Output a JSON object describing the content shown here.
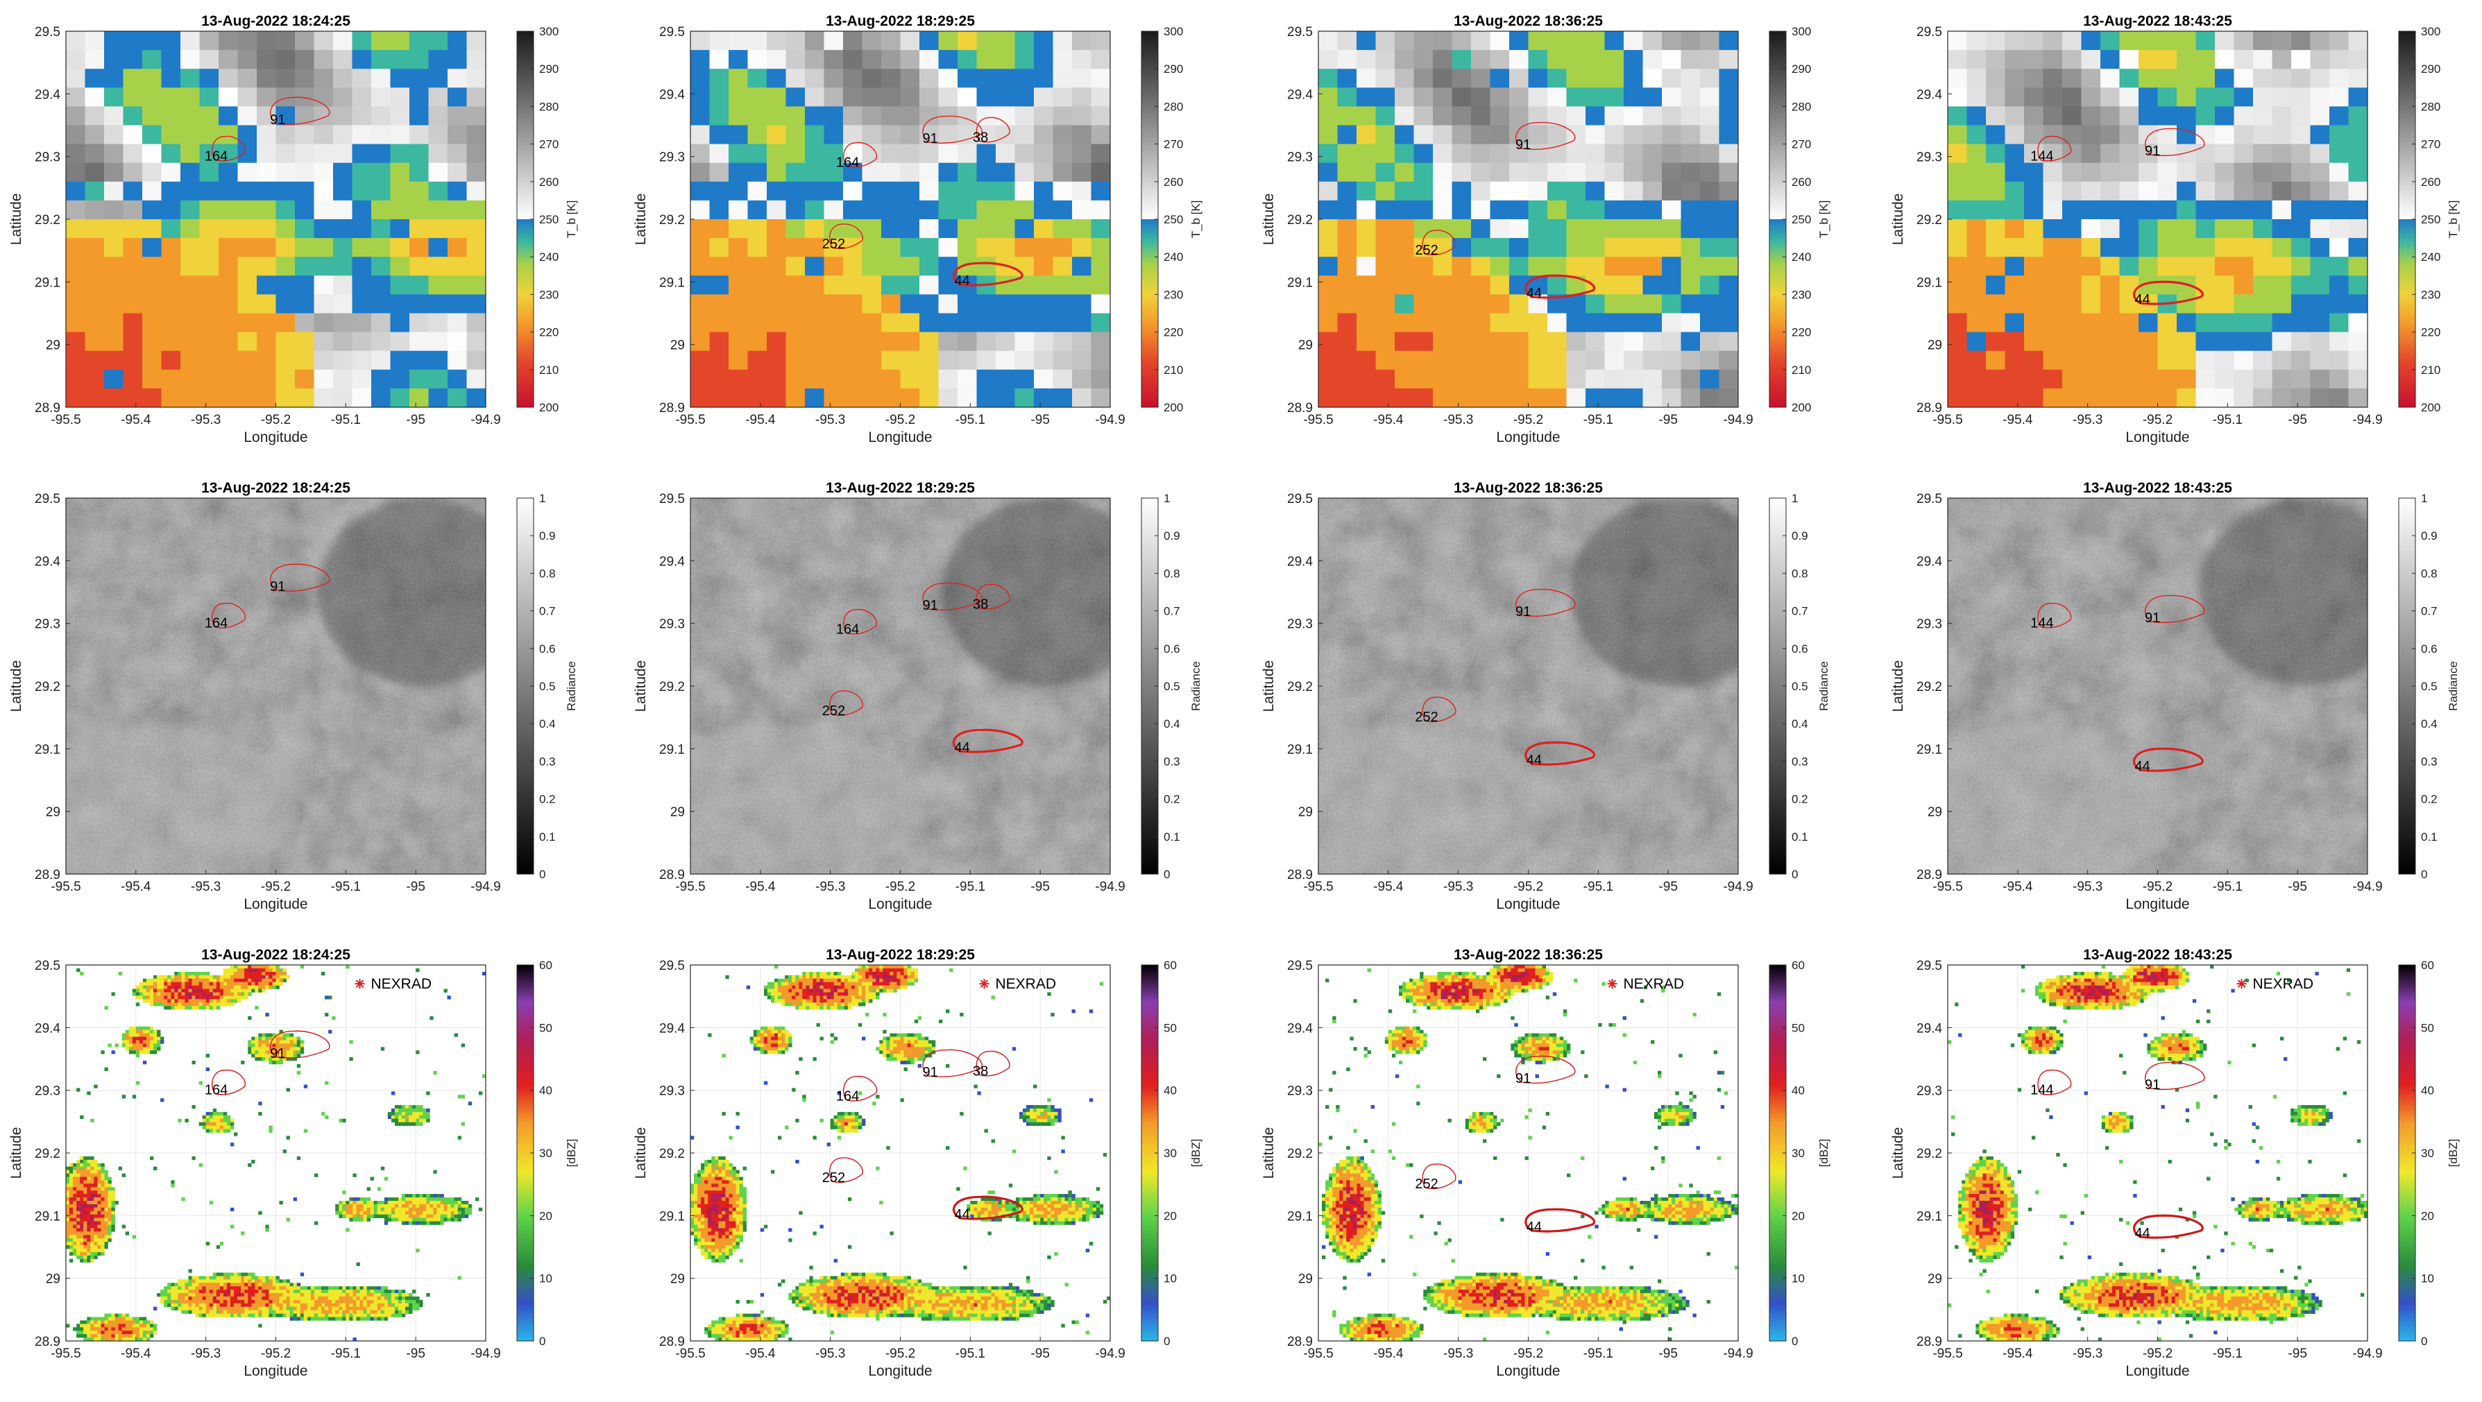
{
  "figure": {
    "rows": [
      {
        "id": "tb",
        "colorbar": {
          "label": "T_b [K]",
          "min": 200,
          "max": 300,
          "ticks": [
            200,
            210,
            220,
            230,
            240,
            250,
            260,
            270,
            280,
            290,
            300
          ],
          "colormap": "tb-split-250"
        }
      },
      {
        "id": "radiance",
        "colorbar": {
          "label": "Radiance",
          "min": 0,
          "max": 1,
          "ticks": [
            "0",
            "0.1",
            "0.2",
            "0.3",
            "0.4",
            "0.5",
            "0.6",
            "0.7",
            "0.8",
            "0.9",
            "1"
          ],
          "colormap": "gray"
        }
      },
      {
        "id": "reflectivity",
        "colorbar": {
          "label": "[dBZ]",
          "min": 0,
          "max": 60,
          "ticks": [
            0,
            10,
            20,
            30,
            40,
            50,
            60
          ],
          "colormap": "nexrad"
        }
      }
    ],
    "columns": [
      {
        "time": "13-Aug-2022 18:24:25",
        "cells": [
          {
            "id": "91",
            "lon": -95.17,
            "lat": 29.37
          },
          {
            "id": "164",
            "lon": -95.27,
            "lat": 29.31
          }
        ]
      },
      {
        "time": "13-Aug-2022 18:29:25",
        "cells": [
          {
            "id": "91",
            "lon": -95.13,
            "lat": 29.34
          },
          {
            "id": "38",
            "lon": -95.07,
            "lat": 29.34
          },
          {
            "id": "164",
            "lon": -95.26,
            "lat": 29.3
          },
          {
            "id": "252",
            "lon": -95.28,
            "lat": 29.17
          },
          {
            "id": "44",
            "lon": -95.08,
            "lat": 29.11
          }
        ]
      },
      {
        "time": "13-Aug-2022 18:36:25",
        "cells": [
          {
            "id": "91",
            "lon": -95.18,
            "lat": 29.33
          },
          {
            "id": "252",
            "lon": -95.33,
            "lat": 29.16
          },
          {
            "id": "44",
            "lon": -95.16,
            "lat": 29.09
          }
        ]
      },
      {
        "time": "13-Aug-2022 18:43:25",
        "cells": [
          {
            "id": "144",
            "lon": -95.35,
            "lat": 29.31
          },
          {
            "id": "91",
            "lon": -95.18,
            "lat": 29.32
          },
          {
            "id": "44",
            "lon": -95.19,
            "lat": 29.08
          }
        ]
      }
    ],
    "nexrad_label": "NEXRAD"
  },
  "chart_data": [
    {
      "type": "heatmap",
      "row": "tb",
      "title": "13-Aug-2022 18:24:25",
      "xlabel": "Longitude",
      "ylabel": "Latitude",
      "xlim": [
        -95.5,
        -94.9
      ],
      "ylim": [
        28.9,
        29.5
      ],
      "xticks": [
        "-95.5",
        "-95.4",
        "-95.3",
        "-95.2",
        "-95.1",
        "-95",
        "-94.9"
      ],
      "yticks": [
        "28.9",
        "29",
        "29.1",
        "29.2",
        "29.3",
        "29.4",
        "29.5"
      ],
      "colorbar_label": "T_b [K]"
    },
    {
      "type": "heatmap",
      "row": "tb",
      "title": "13-Aug-2022 18:29:25",
      "xlabel": "Longitude",
      "ylabel": "Latitude",
      "xlim": [
        -95.5,
        -94.9
      ],
      "ylim": [
        28.9,
        29.5
      ],
      "colorbar_label": "T_b [K]"
    },
    {
      "type": "heatmap",
      "row": "tb",
      "title": "13-Aug-2022 18:36:25",
      "xlabel": "Longitude",
      "ylabel": "Latitude",
      "xlim": [
        -95.5,
        -94.9
      ],
      "ylim": [
        28.9,
        29.5
      ],
      "colorbar_label": "T_b [K]"
    },
    {
      "type": "heatmap",
      "row": "tb",
      "title": "13-Aug-2022 18:43:25",
      "xlabel": "Longitude",
      "ylabel": "Latitude",
      "xlim": [
        -95.5,
        -94.9
      ],
      "ylim": [
        28.9,
        29.5
      ],
      "colorbar_label": "T_b [K]"
    },
    {
      "type": "heatmap",
      "row": "radiance",
      "title": "13-Aug-2022 18:24:25",
      "xlabel": "Longitude",
      "ylabel": "Latitude",
      "xlim": [
        -95.5,
        -94.9
      ],
      "ylim": [
        28.9,
        29.5
      ],
      "colorbar_label": "Radiance"
    },
    {
      "type": "heatmap",
      "row": "radiance",
      "title": "13-Aug-2022 18:29:25",
      "xlabel": "Longitude",
      "ylabel": "Latitude",
      "xlim": [
        -95.5,
        -94.9
      ],
      "ylim": [
        28.9,
        29.5
      ],
      "colorbar_label": "Radiance"
    },
    {
      "type": "heatmap",
      "row": "radiance",
      "title": "13-Aug-2022 18:36:25",
      "xlabel": "Longitude",
      "ylabel": "Latitude",
      "xlim": [
        -95.5,
        -94.9
      ],
      "ylim": [
        28.9,
        29.5
      ],
      "colorbar_label": "Radiance"
    },
    {
      "type": "heatmap",
      "row": "radiance",
      "title": "13-Aug-2022 18:43:25",
      "xlabel": "Longitude",
      "ylabel": "Latitude",
      "xlim": [
        -95.5,
        -94.9
      ],
      "ylim": [
        28.9,
        29.5
      ],
      "colorbar_label": "Radiance"
    },
    {
      "type": "heatmap",
      "row": "reflectivity",
      "title": "13-Aug-2022 18:24:25",
      "xlabel": "Longitude",
      "ylabel": "Latitude",
      "xlim": [
        -95.5,
        -94.9
      ],
      "ylim": [
        28.9,
        29.5
      ],
      "colorbar_label": "[dBZ]",
      "grid": true
    },
    {
      "type": "heatmap",
      "row": "reflectivity",
      "title": "13-Aug-2022 18:29:25",
      "xlabel": "Longitude",
      "ylabel": "Latitude",
      "xlim": [
        -95.5,
        -94.9
      ],
      "ylim": [
        28.9,
        29.5
      ],
      "colorbar_label": "[dBZ]",
      "grid": true
    },
    {
      "type": "heatmap",
      "row": "reflectivity",
      "title": "13-Aug-2022 18:36:25",
      "xlabel": "Longitude",
      "ylabel": "Latitude",
      "xlim": [
        -95.5,
        -94.9
      ],
      "ylim": [
        28.9,
        29.5
      ],
      "colorbar_label": "[dBZ]",
      "grid": true
    },
    {
      "type": "heatmap",
      "row": "reflectivity",
      "title": "13-Aug-2022 18:43:25",
      "xlabel": "Longitude",
      "ylabel": "Latitude",
      "xlim": [
        -95.5,
        -94.9
      ],
      "ylim": [
        28.9,
        29.5
      ],
      "colorbar_label": "[dBZ]",
      "grid": true
    }
  ]
}
